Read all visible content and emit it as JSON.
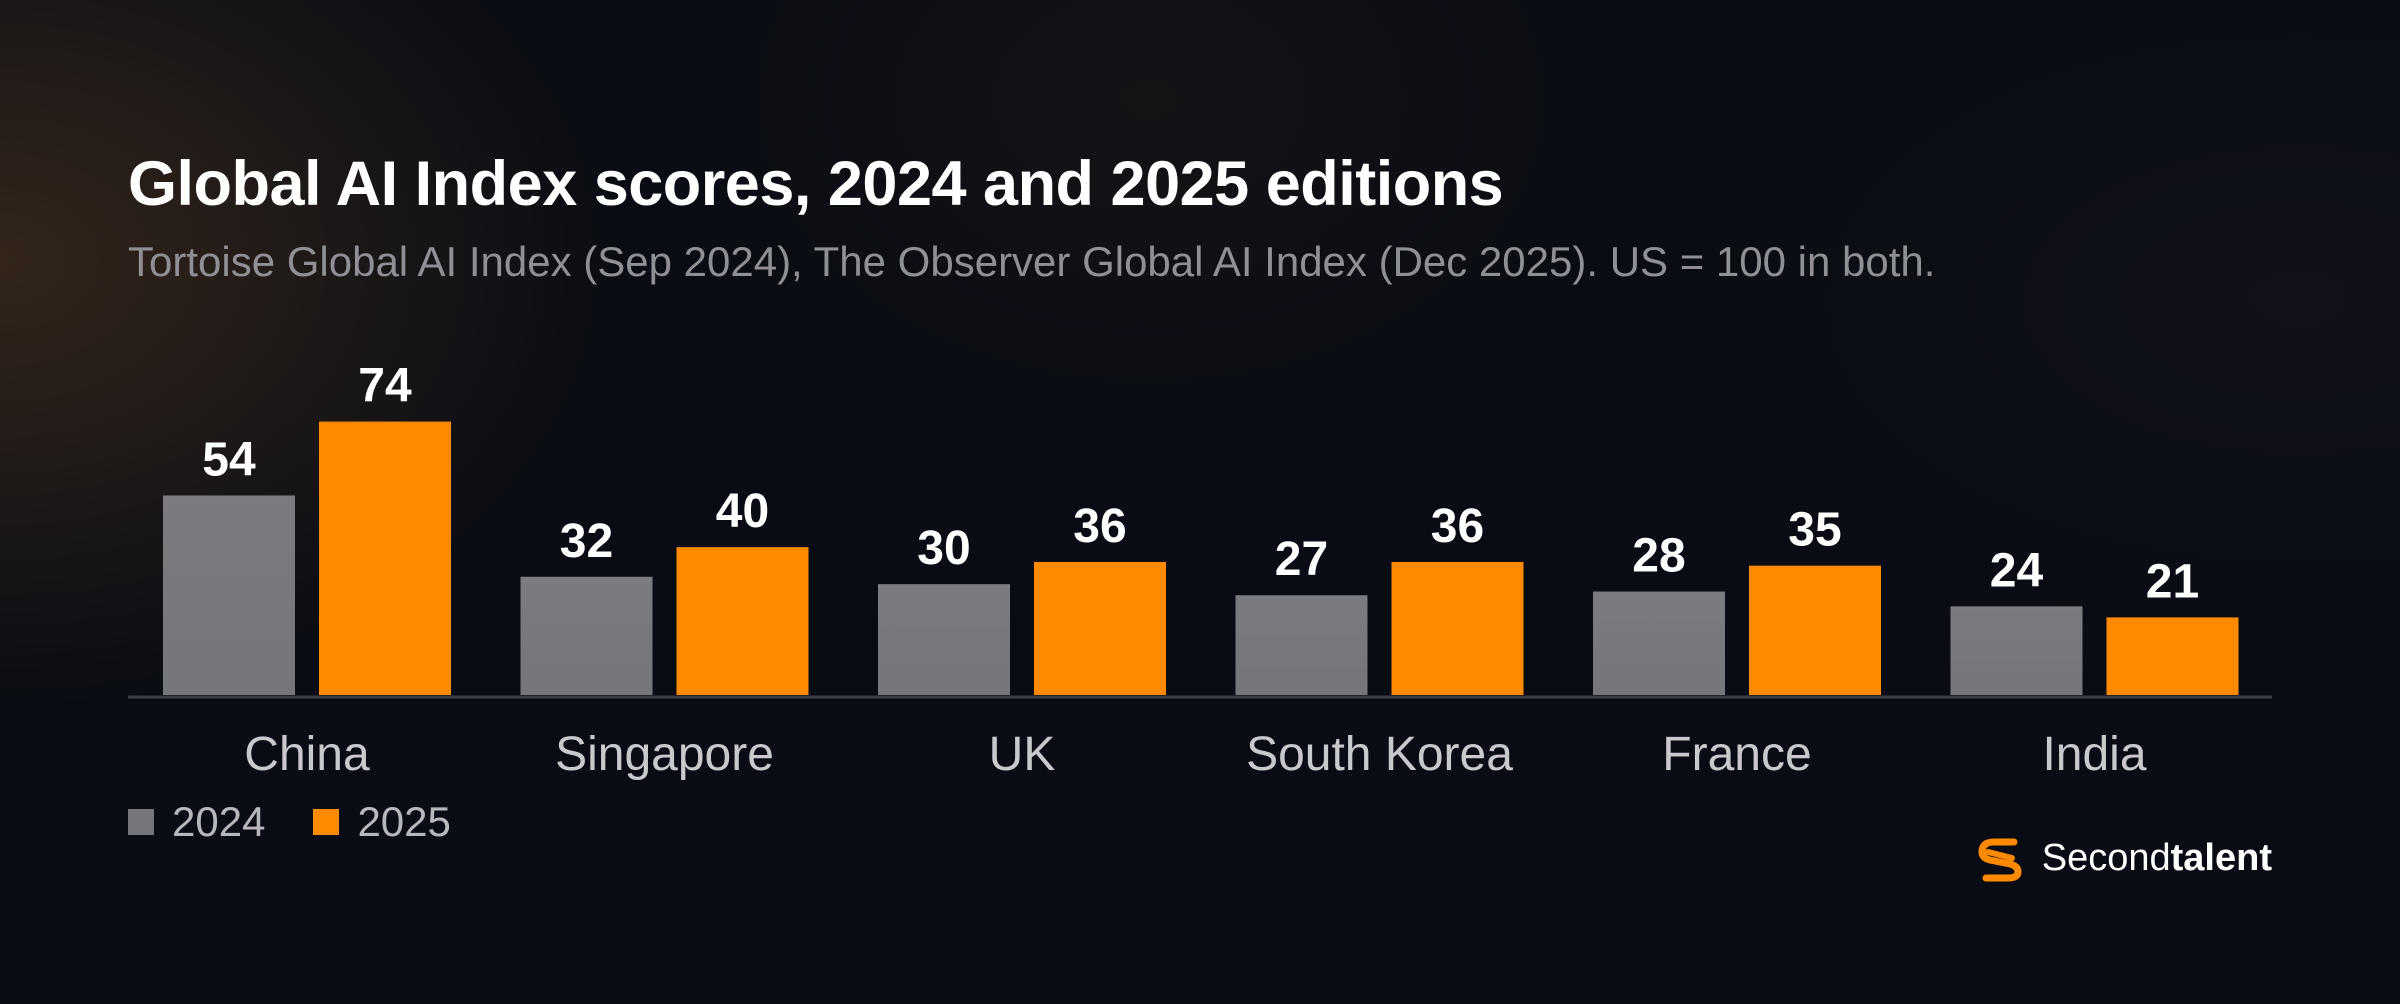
{
  "title": "Global AI Index scores, 2024 and 2025 editions",
  "subtitle": "Tortoise Global AI Index (Sep 2024), The Observer Global AI Index (Dec 2025). US = 100 in both.",
  "colors": {
    "2024": "#75757b",
    "2025": "#ff8a00",
    "background": "#090c14"
  },
  "chart_data": {
    "type": "bar",
    "categories": [
      "China",
      "Singapore",
      "UK",
      "South Korea",
      "France",
      "India"
    ],
    "series": [
      {
        "name": "2024",
        "values": [
          54,
          32,
          30,
          27,
          28,
          24
        ]
      },
      {
        "name": "2025",
        "values": [
          74,
          40,
          36,
          36,
          35,
          21
        ]
      }
    ],
    "ylim": [
      0,
      80
    ],
    "grid": false,
    "legend_position": "bottom-left",
    "xlabel": "",
    "ylabel": ""
  },
  "legend": {
    "items": [
      {
        "label": "2024"
      },
      {
        "label": "2025"
      }
    ]
  },
  "brand": {
    "icon": "secondtalent-logo-icon",
    "name_light": "Second",
    "name_bold": "talent"
  }
}
